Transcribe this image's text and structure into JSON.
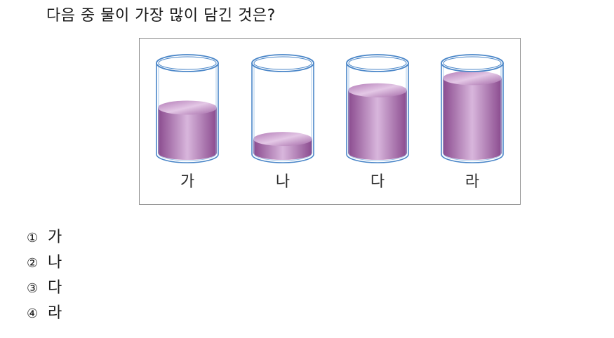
{
  "question": "다음 중 물이 가장 많이 담긴 것은?",
  "figure": {
    "colors": {
      "liquid_dark": "#8a4a8e",
      "liquid_light": "#d8b6dc",
      "glass_outline": "#4a86c8"
    },
    "cups": [
      {
        "label": "가",
        "fill_level": 0.52
      },
      {
        "label": "나",
        "fill_level": 0.16
      },
      {
        "label": "다",
        "fill_level": 0.72
      },
      {
        "label": "라",
        "fill_level": 0.86
      }
    ]
  },
  "choices": [
    {
      "num": "①",
      "text": "가"
    },
    {
      "num": "②",
      "text": "나"
    },
    {
      "num": "③",
      "text": "다"
    },
    {
      "num": "④",
      "text": "라"
    }
  ]
}
